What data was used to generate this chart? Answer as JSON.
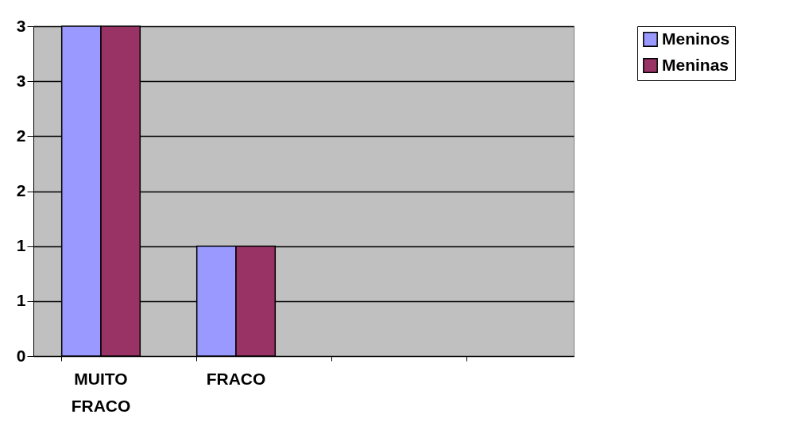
{
  "chart_data": {
    "type": "bar",
    "categories": [
      "MUITO FRACO",
      "FRACO",
      null,
      null
    ],
    "series": [
      {
        "name": "Meninos",
        "color": "#9999ff",
        "values": [
          3,
          1,
          null,
          null
        ]
      },
      {
        "name": "Meninas",
        "color": "#993366",
        "values": [
          3,
          1,
          null,
          null
        ]
      }
    ],
    "ylim": [
      0,
      3
    ],
    "yticks": [
      0,
      {
        "value": 0.5,
        "label": "1"
      },
      1,
      {
        "value": 1.5,
        "label": "2"
      },
      2,
      {
        "value": 2.5,
        "label": "3"
      },
      3
    ],
    "grid": "y",
    "legend": "right"
  }
}
